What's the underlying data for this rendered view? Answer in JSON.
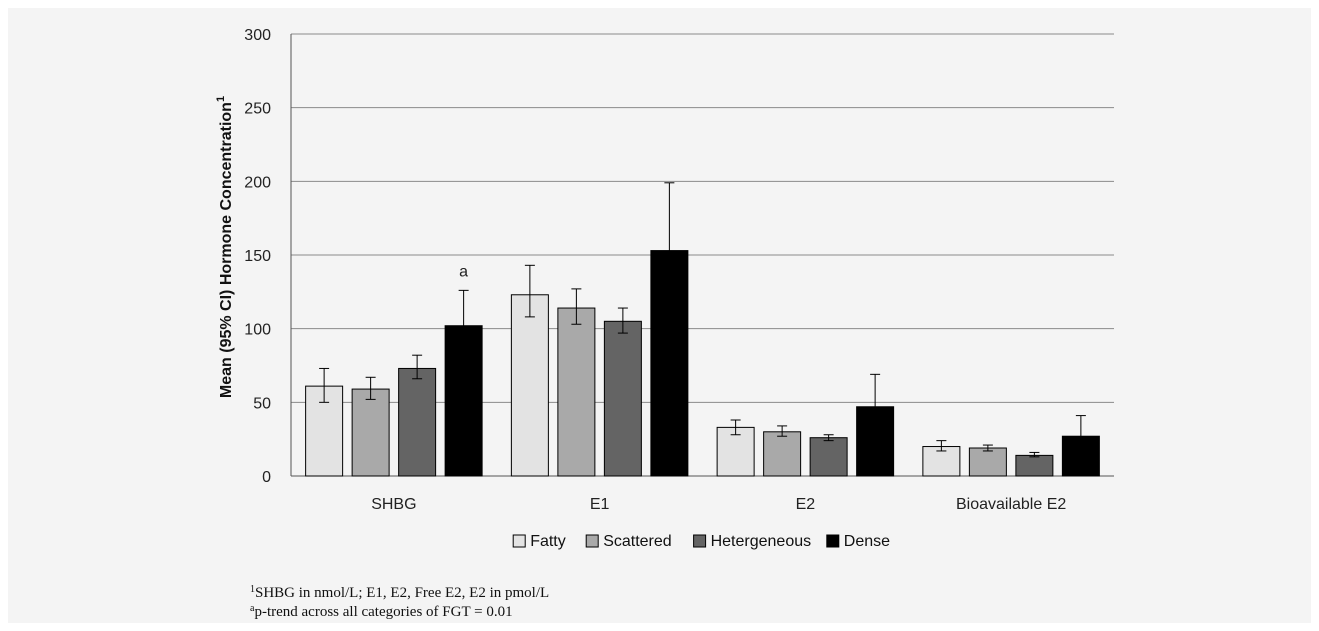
{
  "chart_data": {
    "type": "bar",
    "title": "",
    "xlabel": "",
    "ylabel": "Mean (95% CI) Hormone Concentration",
    "ylabel_superscript": "1",
    "ylim": [
      0,
      300
    ],
    "yticks": [
      0,
      50,
      100,
      150,
      200,
      250,
      300
    ],
    "grid": true,
    "legend_position": "bottom",
    "categories": [
      "SHBG",
      "E1",
      "E2",
      "Bioavailable E2"
    ],
    "series": [
      {
        "name": "Fatty",
        "color": "#e3e3e3",
        "values": [
          61,
          123,
          33,
          20
        ],
        "ci_low": [
          50,
          108,
          28,
          17
        ],
        "ci_high": [
          73,
          143,
          38,
          24
        ]
      },
      {
        "name": "Scattered",
        "color": "#a9a9a9",
        "values": [
          59,
          114,
          30,
          19
        ],
        "ci_low": [
          52,
          103,
          27,
          17
        ],
        "ci_high": [
          67,
          127,
          34,
          21
        ]
      },
      {
        "name": "Hetergeneous",
        "color": "#646464",
        "values": [
          73,
          105,
          26,
          14
        ],
        "ci_low": [
          66,
          97,
          24,
          13
        ],
        "ci_high": [
          82,
          114,
          28,
          16
        ]
      },
      {
        "name": "Dense",
        "color": "#000000",
        "values": [
          102,
          153,
          47,
          27
        ],
        "ci_low": [
          102,
          153,
          47,
          27
        ],
        "ci_high": [
          126,
          199,
          69,
          41
        ]
      }
    ],
    "annotations": [
      {
        "category": "SHBG",
        "series": "Dense",
        "text": "a"
      }
    ]
  },
  "footnotes": [
    {
      "marker": "1",
      "text": "SHBG in nmol/L; E1, E2, Free E2, E2 in pmol/L"
    },
    {
      "marker": "a",
      "text": "p-trend across all categories of FGT = 0.01"
    }
  ]
}
